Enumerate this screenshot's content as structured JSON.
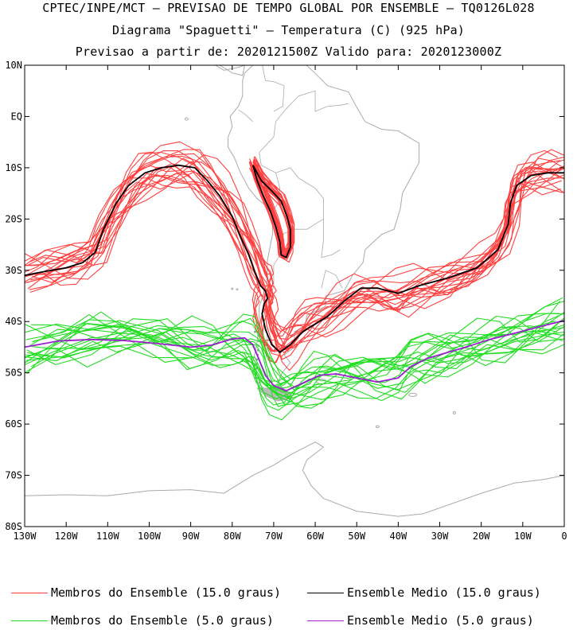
{
  "titles": {
    "line1": "CPTEC/INPE/MCT – PREVISAO DE TEMPO GLOBAL POR ENSEMBLE – TQ0126L028",
    "line2": "Diagrama \"Spaguetti\" – Temperatura (C) (925 hPa)",
    "line3": "Previsao a partir de: 2020121500Z  Valido para: 2020123000Z"
  },
  "legend": [
    {
      "label": "Membros do Ensemble (15.0 graus)",
      "color": "#ff4040"
    },
    {
      "label": "Ensemble Medio (15.0 graus)",
      "color": "#000000"
    },
    {
      "label": "Membros do Ensemble (5.0 graus)",
      "color": "#22dd22"
    },
    {
      "label": "Ensemble Medio (5.0 graus)",
      "color": "#9b1fcf"
    }
  ],
  "chart_data": {
    "type": "line",
    "map_projection": "lat-lon",
    "coastline_color": "#aaaaaa",
    "xlim": [
      -130,
      0
    ],
    "ylim": [
      -80,
      10
    ],
    "x_ticks": [
      -130,
      -120,
      -110,
      -100,
      -90,
      -80,
      -70,
      -60,
      -50,
      -40,
      -30,
      -20,
      -10,
      0
    ],
    "x_tick_labels": [
      "130W",
      "120W",
      "110W",
      "100W",
      "90W",
      "80W",
      "70W",
      "60W",
      "50W",
      "40W",
      "30W",
      "20W",
      "10W",
      "0"
    ],
    "y_ticks": [
      10,
      0,
      -10,
      -20,
      -30,
      -40,
      -50,
      -60,
      -70,
      -80
    ],
    "y_tick_labels": [
      "10N",
      "EQ",
      "10S",
      "20S",
      "30S",
      "40S",
      "50S",
      "60S",
      "70S",
      "80S"
    ],
    "series": [
      {
        "name": "Ensemble Medio (15.0 graus)",
        "color": "#000000",
        "members": 1,
        "segments": [
          [
            [
              -130,
              -31.0
            ],
            [
              -125,
              -30.2
            ],
            [
              -120,
              -29.5
            ],
            [
              -116,
              -28.5
            ],
            [
              -113,
              -26.5
            ],
            [
              -111,
              -22.0
            ],
            [
              -108,
              -17.0
            ],
            [
              -105,
              -13.5
            ],
            [
              -101,
              -11.0
            ],
            [
              -97,
              -10.0
            ],
            [
              -93,
              -9.5
            ],
            [
              -89,
              -10.0
            ],
            [
              -86,
              -12.5
            ],
            [
              -83,
              -15.5
            ],
            [
              -80,
              -19.5
            ],
            [
              -78,
              -23.5
            ],
            [
              -76,
              -27.0
            ],
            [
              -74.5,
              -30.5
            ],
            [
              -73.2,
              -33.0
            ],
            [
              -72.0,
              -34.0
            ],
            [
              -71.5,
              -35.5
            ],
            [
              -72.3,
              -36.5
            ],
            [
              -72.8,
              -38.5
            ],
            [
              -72.0,
              -41.5
            ],
            [
              -70.5,
              -44.5
            ],
            [
              -68.5,
              -46.0
            ],
            [
              -66,
              -44.5
            ],
            [
              -63,
              -42.0
            ],
            [
              -60,
              -40.5
            ],
            [
              -57,
              -39.0
            ],
            [
              -53,
              -36.0
            ],
            [
              -49,
              -33.5
            ],
            [
              -45,
              -33.5
            ],
            [
              -40,
              -34.5
            ],
            [
              -35,
              -33.0
            ],
            [
              -28,
              -31.5
            ],
            [
              -21,
              -29.5
            ],
            [
              -16,
              -26.0
            ],
            [
              -13.5,
              -21.0
            ],
            [
              -13,
              -17.0
            ],
            [
              -11.5,
              -13.5
            ],
            [
              -8,
              -11.5
            ],
            [
              -4,
              -11.0
            ],
            [
              0,
              -11.0
            ]
          ],
          [
            [
              -75,
              -9.5
            ],
            [
              -73,
              -12.5
            ],
            [
              -70.5,
              -14.5
            ],
            [
              -68.2,
              -16.5
            ],
            [
              -66.8,
              -19.5
            ],
            [
              -66.0,
              -22.0
            ],
            [
              -66.0,
              -25.5
            ],
            [
              -67.0,
              -27.5
            ],
            [
              -68.2,
              -27.0
            ],
            [
              -68.5,
              -24.5
            ],
            [
              -69.5,
              -21.5
            ],
            [
              -70.8,
              -18.5
            ],
            [
              -72.5,
              -15.5
            ],
            [
              -74,
              -12.5
            ],
            [
              -75,
              -9.5
            ]
          ]
        ]
      },
      {
        "name": "Ensemble Medio (5.0 graus)",
        "color": "#9b1fcf",
        "members": 1,
        "segments": [
          [
            [
              -130,
              -45.0
            ],
            [
              -122,
              -43.8
            ],
            [
              -114,
              -43.5
            ],
            [
              -106,
              -43.7
            ],
            [
              -98,
              -44.3
            ],
            [
              -90,
              -45.0
            ],
            [
              -85,
              -44.6
            ],
            [
              -80,
              -43.4
            ],
            [
              -77,
              -43.2
            ],
            [
              -75,
              -44.5
            ],
            [
              -73.5,
              -47.5
            ],
            [
              -72,
              -50.5
            ],
            [
              -70,
              -52.5
            ],
            [
              -67,
              -53.5
            ],
            [
              -63,
              -52.0
            ],
            [
              -59,
              -50.5
            ],
            [
              -55,
              -50.2
            ],
            [
              -50,
              -51.0
            ],
            [
              -45,
              -51.8
            ],
            [
              -40,
              -51.0
            ],
            [
              -37,
              -48.8
            ],
            [
              -33,
              -47.2
            ],
            [
              -28,
              -46.0
            ],
            [
              -23,
              -44.8
            ],
            [
              -18,
              -43.5
            ],
            [
              -12,
              -42.3
            ],
            [
              -6,
              -41.0
            ],
            [
              0,
              -39.8
            ]
          ]
        ]
      },
      {
        "name": "Membros do Ensemble (15.0 graus)",
        "color": "#ff4040",
        "members": 20,
        "based_on": "Ensemble Medio (15.0 graus)"
      },
      {
        "name": "Membros do Ensemble (5.0 graus)",
        "color": "#22dd22",
        "members": 20,
        "based_on": "Ensemble Medio (5.0 graus)"
      }
    ]
  }
}
